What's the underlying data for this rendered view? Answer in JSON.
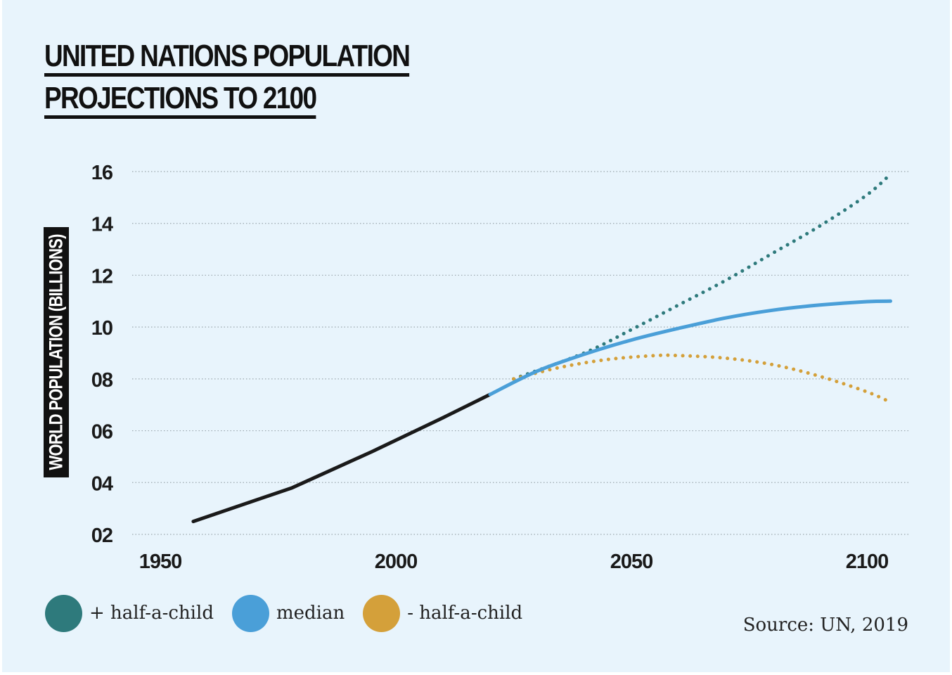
{
  "title": [
    "UNITED NATIONS POPULATION",
    "PROJECTIONS TO 2100"
  ],
  "source": "Source: UN, 2019",
  "chart_data": {
    "type": "line",
    "ylabel": "WORLD POPULATION (BILLIONS)",
    "xlim": [
      1945,
      2110
    ],
    "ylim": [
      2,
      16
    ],
    "x_ticks": [
      {
        "value": 1950,
        "label": "1950"
      },
      {
        "value": 2000,
        "label": "2000"
      },
      {
        "value": 2050,
        "label": "2050"
      },
      {
        "value": 2100,
        "label": "2100"
      }
    ],
    "y_ticks": [
      {
        "value": 2,
        "label": "02"
      },
      {
        "value": 4,
        "label": "04"
      },
      {
        "value": 6,
        "label": "06"
      },
      {
        "value": 8,
        "label": "08"
      },
      {
        "value": 10,
        "label": "10"
      },
      {
        "value": 12,
        "label": "12"
      },
      {
        "value": 14,
        "label": "14"
      },
      {
        "value": 16,
        "label": "16"
      }
    ],
    "grid": true,
    "legend_position": "bottom-left",
    "series": [
      {
        "key": "historical",
        "color": "#1a1a1a",
        "style": "solid",
        "x": [
          1957,
          1978,
          1995,
          2010,
          2020
        ],
        "y": [
          2.5,
          3.8,
          5.2,
          6.5,
          7.4
        ]
      },
      {
        "key": "median",
        "name": "median",
        "color": "#4a9fd8",
        "style": "solid",
        "x": [
          2020,
          2030,
          2040,
          2050,
          2060,
          2070,
          2080,
          2090,
          2100,
          2105
        ],
        "y": [
          7.4,
          8.3,
          8.95,
          9.5,
          9.95,
          10.35,
          10.65,
          10.85,
          10.98,
          11.0
        ]
      },
      {
        "key": "high",
        "name": "+ half-a-child",
        "color": "#2e7a7c",
        "style": "dotted",
        "x": [
          2025,
          2040,
          2050,
          2060,
          2070,
          2080,
          2090,
          2100,
          2105
        ],
        "y": [
          8.0,
          9.0,
          9.9,
          10.85,
          11.8,
          12.85,
          13.9,
          15.1,
          15.9
        ]
      },
      {
        "key": "low",
        "name": "- half-a-child",
        "color": "#d4a03a",
        "style": "dotted",
        "x": [
          2025,
          2035,
          2045,
          2055,
          2060,
          2070,
          2080,
          2090,
          2100,
          2105
        ],
        "y": [
          8.0,
          8.45,
          8.75,
          8.9,
          8.9,
          8.8,
          8.55,
          8.1,
          7.5,
          7.1
        ]
      }
    ]
  }
}
